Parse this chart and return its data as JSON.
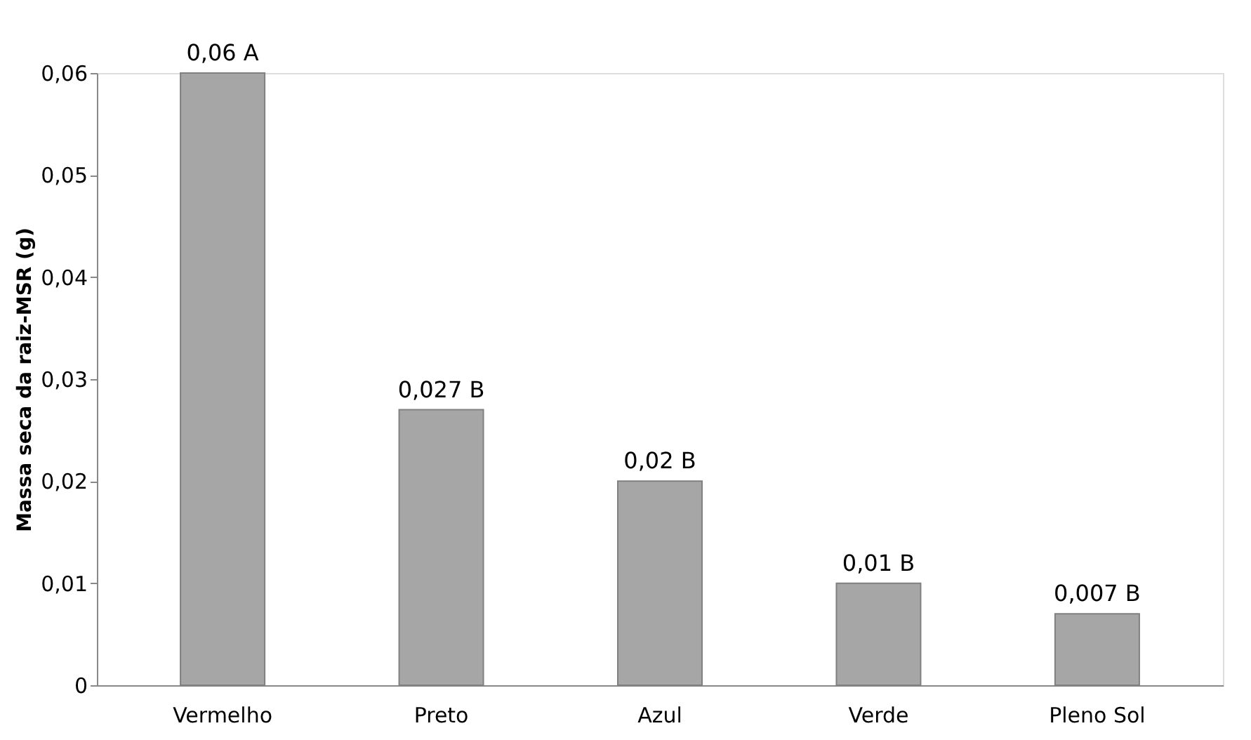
{
  "chart_data": {
    "type": "bar",
    "ylabel": "Massa seca da raiz-MSR (g)",
    "categories": [
      "Vermelho",
      "Preto",
      "Azul",
      "Verde",
      "Pleno Sol"
    ],
    "values": [
      0.06,
      0.027,
      0.02,
      0.01,
      0.007
    ],
    "value_labels": [
      "0,06 A",
      "0,027 B",
      "0,02 B",
      "0,01 B",
      "0,007 B"
    ],
    "color": "#a6a6a6",
    "ylim": [
      0,
      0.06
    ],
    "yticks": [
      0,
      {
        "value": 0.01,
        "label": "0,01"
      },
      {
        "value": 0.02,
        "label": "0,02"
      },
      {
        "value": 0.03,
        "label": "0,03"
      },
      {
        "value": 0.04,
        "label": "0,04"
      },
      {
        "value": 0.05,
        "label": "0,05"
      },
      {
        "value": 0.06,
        "label": "0,06"
      }
    ],
    "grid": false
  }
}
